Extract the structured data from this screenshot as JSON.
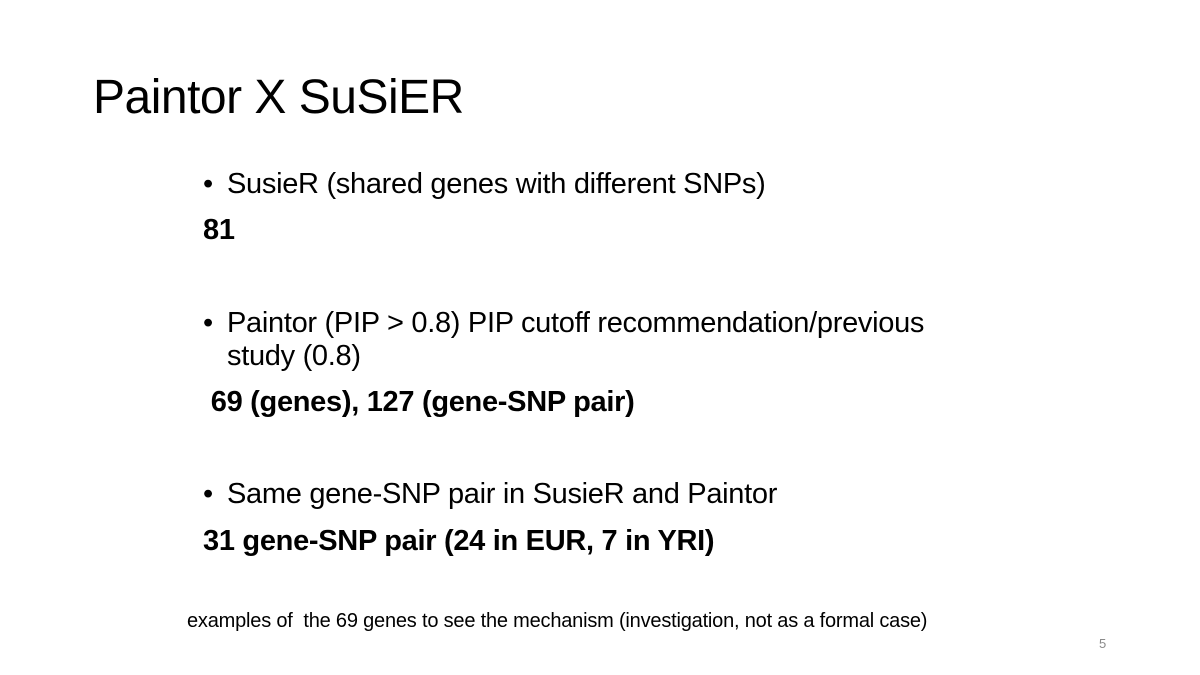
{
  "slide": {
    "title": "Paintor X SuSiER",
    "bullet_marker": "•",
    "items": [
      {
        "text": "SusieR (shared genes with different SNPs)",
        "result": "81"
      },
      {
        "text": "Paintor (PIP > 0.8) PIP cutoff recommendation/previous study (0.8)",
        "result": " 69 (genes), 127 (gene-SNP pair)"
      },
      {
        "text": "Same gene-SNP pair in SusieR and Paintor",
        "result": "31 gene-SNP pair (24 in EUR, 7 in YRI)"
      }
    ],
    "footnote": "examples of  the 69 genes to see the mechanism (investigation, not as a formal case)",
    "page_number": "5"
  }
}
